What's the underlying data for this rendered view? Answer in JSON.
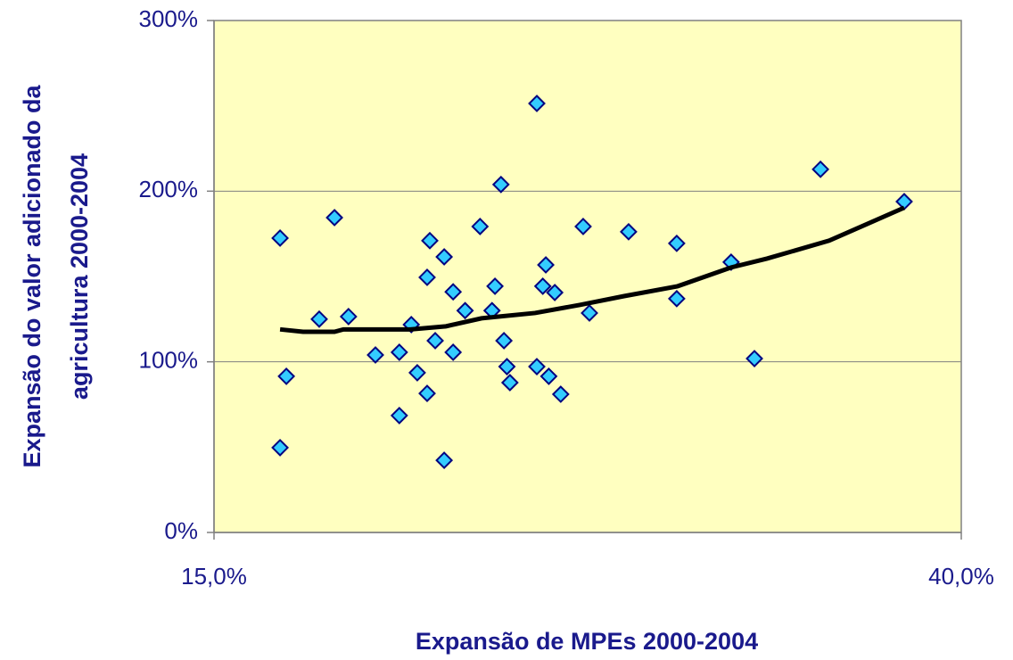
{
  "chart_data": {
    "type": "scatter",
    "x_label": "Expansão de MPEs 2000-2004",
    "y_label": [
      "Expansão do valor adicionado da",
      "agricultura 2000-2004"
    ],
    "xlim": [
      15,
      40
    ],
    "xticks": [
      {
        "value": 15,
        "label": "15,0%"
      },
      {
        "value": 40,
        "label": "40,0%"
      }
    ],
    "ylim": [
      0,
      300
    ],
    "yticks": [
      {
        "value": 0,
        "label": "0%"
      },
      {
        "value": 100,
        "label": "100%"
      },
      {
        "value": 200,
        "label": "200%"
      },
      {
        "value": 300,
        "label": "300%"
      }
    ],
    "grid": true,
    "background": "#ffffc0",
    "series": [
      {
        "style": "marker",
        "color": "#33ccff",
        "x": [
          17.21,
          17.42,
          17.21,
          18.52,
          19.03,
          19.5,
          20.4,
          21.2,
          21.6,
          21.2,
          21.8,
          22.13,
          22.22,
          22.13,
          22.4,
          22.7,
          22.7,
          23.0,
          23.0,
          23.4,
          23.9,
          24.4,
          24.3,
          24.6,
          24.7,
          24.8,
          24.9,
          25.8,
          25.8,
          26.1,
          26.0,
          26.2,
          26.4,
          26.6,
          27.35,
          27.56,
          28.87,
          30.48,
          30.48,
          32.3,
          33.08,
          35.29,
          38.09
        ],
        "values": [
          172.5,
          91.5,
          49.7,
          125,
          184.5,
          126.5,
          104,
          105.6,
          121.8,
          68.5,
          93.6,
          149.5,
          171,
          81.5,
          112.4,
          161.5,
          42.3,
          141,
          105.6,
          130,
          179.3,
          144.3,
          130,
          203.9,
          112.4,
          97.2,
          87.8,
          251.4,
          97.2,
          156.8,
          144.3,
          91.5,
          140.6,
          81,
          179.3,
          128.6,
          176.2,
          169.4,
          137,
          158.4,
          101.9,
          212.8,
          193.9
        ]
      },
      {
        "style": "line",
        "color": "#000000",
        "x": [
          17.21,
          17.98,
          19.03,
          19.33,
          21.56,
          22.76,
          23.95,
          25.74,
          27.23,
          28.72,
          30.51,
          32.3,
          33.5,
          35.58,
          38.09
        ],
        "values": [
          119,
          117.6,
          117.6,
          119,
          119,
          120.8,
          125.5,
          128.6,
          133.3,
          138.5,
          144.3,
          155.3,
          160.5,
          171,
          190.3
        ]
      }
    ]
  }
}
